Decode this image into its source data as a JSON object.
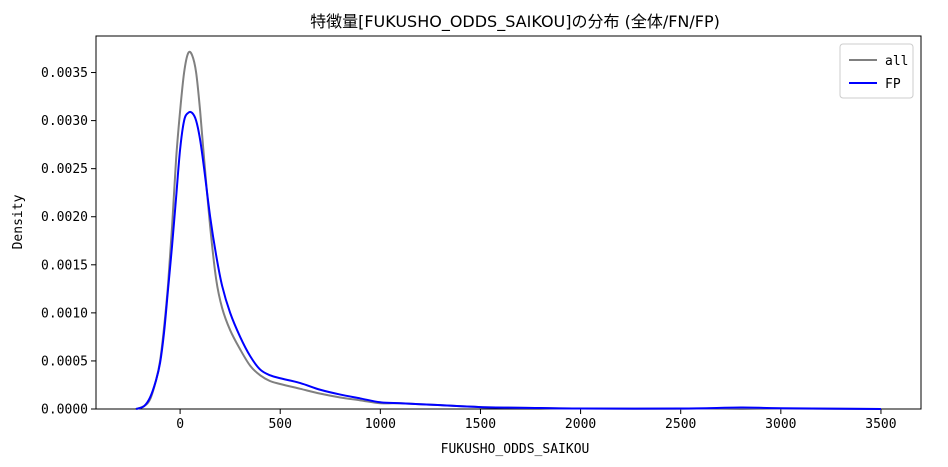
{
  "chart_data": {
    "type": "line",
    "title": "特徴量[FUKUSHO_ODDS_SAIKOU]の分布 (全体/FN/FP)",
    "xlabel": "FUKUSHO_ODDS_SAIKOU",
    "ylabel": "Density",
    "xlim": [
      -420,
      3700
    ],
    "ylim": [
      0,
      0.00388
    ],
    "x_ticks": [
      0,
      500,
      1000,
      1500,
      2000,
      2500,
      3000,
      3500
    ],
    "x_tick_labels": [
      "0",
      "500",
      "1000",
      "1500",
      "2000",
      "2500",
      "3000",
      "3500"
    ],
    "y_ticks": [
      0,
      0.0005,
      0.001,
      0.0015,
      0.002,
      0.0025,
      0.003,
      0.0035
    ],
    "y_tick_labels": [
      "0.0000",
      "0.0005",
      "0.0010",
      "0.0015",
      "0.0020",
      "0.0025",
      "0.0030",
      "0.0035"
    ],
    "grid": false,
    "legend_position": "top-right",
    "series": [
      {
        "name": "all",
        "color": "#808080",
        "points": [
          [
            -220,
            0.0
          ],
          [
            -180,
            3e-05
          ],
          [
            -150,
            0.0001
          ],
          [
            -120,
            0.0003
          ],
          [
            -100,
            0.0005
          ],
          [
            -80,
            0.00085
          ],
          [
            -60,
            0.0013
          ],
          [
            -40,
            0.0019
          ],
          [
            -20,
            0.0026
          ],
          [
            0,
            0.0031
          ],
          [
            20,
            0.0035
          ],
          [
            40,
            0.0037
          ],
          [
            60,
            0.00368
          ],
          [
            80,
            0.0035
          ],
          [
            100,
            0.0031
          ],
          [
            120,
            0.0026
          ],
          [
            150,
            0.0019
          ],
          [
            180,
            0.00135
          ],
          [
            210,
            0.00105
          ],
          [
            250,
            0.00082
          ],
          [
            300,
            0.00062
          ],
          [
            350,
            0.00045
          ],
          [
            400,
            0.00035
          ],
          [
            450,
            0.00029
          ],
          [
            500,
            0.00026
          ],
          [
            600,
            0.00021
          ],
          [
            700,
            0.00016
          ],
          [
            800,
            0.00012
          ],
          [
            900,
            9e-05
          ],
          [
            1000,
            6e-05
          ],
          [
            1100,
            6e-05
          ],
          [
            1200,
            5e-05
          ],
          [
            1300,
            4e-05
          ],
          [
            1500,
            2e-05
          ],
          [
            1800,
            1e-05
          ],
          [
            2000,
            5e-06
          ],
          [
            2500,
            3e-06
          ],
          [
            2800,
            1e-05
          ],
          [
            3000,
            5e-06
          ],
          [
            3500,
            0.0
          ]
        ]
      },
      {
        "name": "FP",
        "color": "#0000ff",
        "points": [
          [
            -220,
            0.0
          ],
          [
            -180,
            3e-05
          ],
          [
            -150,
            0.00012
          ],
          [
            -120,
            0.0003
          ],
          [
            -100,
            0.00048
          ],
          [
            -80,
            0.0008
          ],
          [
            -60,
            0.00125
          ],
          [
            -40,
            0.0017
          ],
          [
            -20,
            0.0022
          ],
          [
            0,
            0.0027
          ],
          [
            20,
            0.003
          ],
          [
            40,
            0.00308
          ],
          [
            60,
            0.00308
          ],
          [
            80,
            0.003
          ],
          [
            100,
            0.0028
          ],
          [
            120,
            0.0025
          ],
          [
            150,
            0.002
          ],
          [
            180,
            0.0016
          ],
          [
            210,
            0.00128
          ],
          [
            250,
            0.001
          ],
          [
            300,
            0.00075
          ],
          [
            350,
            0.00055
          ],
          [
            400,
            0.00041
          ],
          [
            450,
            0.00035
          ],
          [
            500,
            0.00032
          ],
          [
            600,
            0.00027
          ],
          [
            700,
            0.0002
          ],
          [
            800,
            0.00015
          ],
          [
            900,
            0.00011
          ],
          [
            1000,
            7e-05
          ],
          [
            1100,
            6e-05
          ],
          [
            1200,
            5e-05
          ],
          [
            1300,
            4e-05
          ],
          [
            1500,
            2e-05
          ],
          [
            1800,
            1e-05
          ],
          [
            2000,
            5e-06
          ],
          [
            2500,
            5e-06
          ],
          [
            2800,
            1.5e-05
          ],
          [
            3000,
            8e-06
          ],
          [
            3500,
            0.0
          ]
        ]
      }
    ]
  }
}
